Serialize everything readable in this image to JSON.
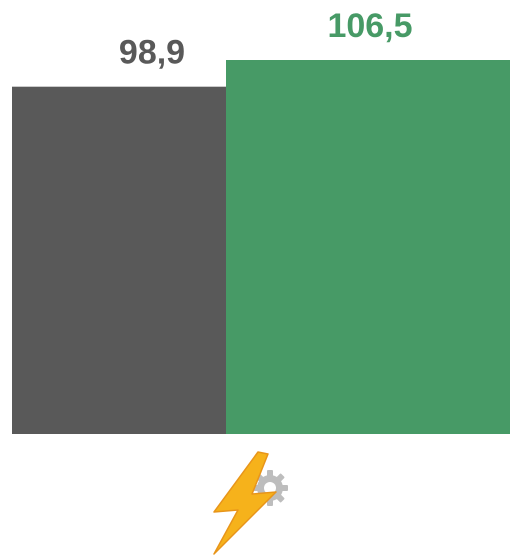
{
  "chart_data": {
    "type": "bar",
    "categories": [
      null,
      null
    ],
    "values": [
      98.9,
      106.5
    ],
    "value_labels": [
      "98,9",
      "106,5"
    ],
    "colors": [
      "#595959",
      "#479a66"
    ]
  }
}
